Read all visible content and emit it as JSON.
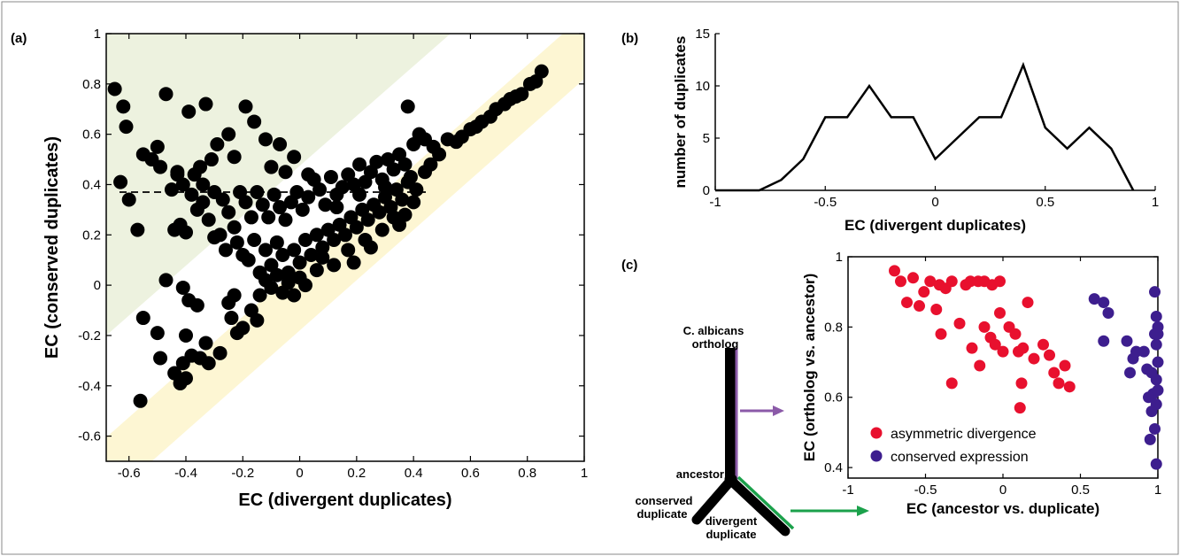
{
  "panels": {
    "a": "(a)",
    "b": "(b)",
    "c": "(c)"
  },
  "colors": {
    "points_a": "#000000",
    "asymmetric": "#e8102e",
    "conserved": "#3d1e8e",
    "upper_band": "#edf2df",
    "lower_band": "#fdf6d3",
    "ancestor_branch": "#8b5aa8",
    "divergent_branch": "#1ba14b"
  },
  "tree": {
    "ortholog_line1": "C. albicans",
    "ortholog_line2": "ortholog",
    "ancestor": "ancestor",
    "conserved_line1": "conserved",
    "conserved_line2": "duplicate",
    "divergent_line1": "divergent",
    "divergent_line2": "duplicate"
  },
  "chart_data": [
    {
      "id": "a",
      "type": "scatter",
      "xlabel": "EC (divergent duplicates)",
      "ylabel": "EC (conserved duplicates)",
      "xlim": [
        -0.68,
        1
      ],
      "ylim": [
        -0.7,
        1
      ],
      "xticks": [
        -0.6,
        -0.4,
        -0.2,
        0,
        0.2,
        0.4,
        0.6,
        0.8,
        1
      ],
      "yticks": [
        -0.6,
        -0.4,
        -0.2,
        0,
        0.2,
        0.4,
        0.6,
        0.8,
        1
      ],
      "xtick_labels": [
        "-0.6",
        "-0.4",
        "-0.2",
        "0",
        "0.2",
        "0.4",
        "0.6",
        "0.8",
        "1"
      ],
      "ytick_labels": [
        "-0.6",
        "-0.4",
        "-0.2",
        "0",
        "0.2",
        "0.4",
        "0.6",
        "0.8",
        "1"
      ],
      "reference_line_y": 0.37,
      "shaded_regions": [
        "upper-left triangle (conserved higher)",
        "diagonal band x ≈ y"
      ],
      "points": [
        [
          -0.65,
          0.78
        ],
        [
          -0.62,
          0.71
        ],
        [
          -0.61,
          0.63
        ],
        [
          -0.63,
          0.41
        ],
        [
          -0.6,
          0.34
        ],
        [
          -0.57,
          0.22
        ],
        [
          -0.55,
          0.52
        ],
        [
          -0.52,
          0.5
        ],
        [
          -0.5,
          0.55
        ],
        [
          -0.49,
          0.47
        ],
        [
          -0.47,
          0.76
        ],
        [
          -0.45,
          0.38
        ],
        [
          -0.43,
          0.45
        ],
        [
          -0.41,
          0.4
        ],
        [
          -0.39,
          0.69
        ],
        [
          -0.37,
          0.44
        ],
        [
          -0.35,
          0.47
        ],
        [
          -0.33,
          0.72
        ],
        [
          -0.31,
          0.5
        ],
        [
          -0.29,
          0.56
        ],
        [
          -0.25,
          0.6
        ],
        [
          -0.23,
          0.51
        ],
        [
          -0.19,
          0.71
        ],
        [
          -0.16,
          0.65
        ],
        [
          -0.12,
          0.58
        ],
        [
          -0.1,
          0.47
        ],
        [
          -0.07,
          0.56
        ],
        [
          -0.05,
          0.45
        ],
        [
          -0.02,
          0.51
        ],
        [
          0.03,
          0.44
        ],
        [
          -0.38,
          0.36
        ],
        [
          -0.36,
          0.3
        ],
        [
          -0.34,
          0.33
        ],
        [
          -0.32,
          0.26
        ],
        [
          -0.3,
          0.19
        ],
        [
          -0.27,
          0.34
        ],
        [
          -0.25,
          0.29
        ],
        [
          -0.23,
          0.23
        ],
        [
          -0.21,
          0.37
        ],
        [
          -0.19,
          0.33
        ],
        [
          -0.17,
          0.27
        ],
        [
          -0.15,
          0.37
        ],
        [
          -0.13,
          0.32
        ],
        [
          -0.11,
          0.27
        ],
        [
          -0.09,
          0.36
        ],
        [
          -0.07,
          0.31
        ],
        [
          -0.05,
          0.26
        ],
        [
          -0.03,
          0.33
        ],
        [
          -0.01,
          0.37
        ],
        [
          0.01,
          0.3
        ],
        [
          0.03,
          0.35
        ],
        [
          0.05,
          0.42
        ],
        [
          0.07,
          0.38
        ],
        [
          0.09,
          0.32
        ],
        [
          0.11,
          0.43
        ],
        [
          0.13,
          0.36
        ],
        [
          0.15,
          0.39
        ],
        [
          0.17,
          0.44
        ],
        [
          0.19,
          0.4
        ],
        [
          0.21,
          0.48
        ],
        [
          0.23,
          0.41
        ],
        [
          0.25,
          0.45
        ],
        [
          0.27,
          0.49
        ],
        [
          0.29,
          0.42
        ],
        [
          0.31,
          0.5
        ],
        [
          0.33,
          0.46
        ],
        [
          0.35,
          0.52
        ],
        [
          0.37,
          0.48
        ],
        [
          0.39,
          0.43
        ],
        [
          0.4,
          0.56
        ],
        [
          0.42,
          0.6
        ],
        [
          0.38,
          0.71
        ],
        [
          0.44,
          0.58
        ],
        [
          0.47,
          0.55
        ],
        [
          0.52,
          0.58
        ],
        [
          -0.44,
          0.22
        ],
        [
          -0.42,
          0.24
        ],
        [
          -0.4,
          0.21
        ],
        [
          -0.28,
          0.2
        ],
        [
          -0.26,
          0.14
        ],
        [
          -0.22,
          0.17
        ],
        [
          -0.2,
          0.12
        ],
        [
          -0.18,
          0.1
        ],
        [
          -0.16,
          0.18
        ],
        [
          -0.14,
          0.05
        ],
        [
          -0.12,
          0.14
        ],
        [
          -0.1,
          0.08
        ],
        [
          -0.08,
          0.17
        ],
        [
          -0.06,
          0.12
        ],
        [
          -0.04,
          0.05
        ],
        [
          -0.02,
          0.14
        ],
        [
          0.0,
          0.09
        ],
        [
          0.02,
          0.18
        ],
        [
          0.04,
          0.12
        ],
        [
          0.06,
          0.2
        ],
        [
          0.08,
          0.15
        ],
        [
          0.1,
          0.22
        ],
        [
          0.12,
          0.18
        ],
        [
          0.14,
          0.24
        ],
        [
          0.16,
          0.2
        ],
        [
          0.18,
          0.27
        ],
        [
          0.2,
          0.23
        ],
        [
          0.22,
          0.3
        ],
        [
          0.24,
          0.26
        ],
        [
          0.26,
          0.32
        ],
        [
          0.28,
          0.29
        ],
        [
          0.3,
          0.35
        ],
        [
          0.32,
          0.31
        ],
        [
          0.34,
          0.38
        ],
        [
          0.36,
          0.34
        ],
        [
          0.38,
          0.41
        ],
        [
          0.41,
          0.38
        ],
        [
          0.44,
          0.45
        ],
        [
          0.46,
          0.48
        ],
        [
          0.49,
          0.52
        ],
        [
          0.57,
          0.59
        ],
        [
          0.62,
          0.63
        ],
        [
          0.64,
          0.65
        ],
        [
          0.69,
          0.7
        ],
        [
          0.72,
          0.72
        ],
        [
          0.74,
          0.74
        ],
        [
          0.76,
          0.75
        ],
        [
          0.78,
          0.76
        ],
        [
          0.81,
          0.8
        ],
        [
          0.83,
          0.81
        ],
        [
          0.85,
          0.85
        ],
        [
          0.67,
          0.67
        ],
        [
          0.6,
          0.62
        ],
        [
          0.55,
          0.57
        ],
        [
          -0.14,
          -0.04
        ],
        [
          -0.12,
          0.02
        ],
        [
          -0.1,
          -0.01
        ],
        [
          -0.08,
          0.04
        ],
        [
          -0.06,
          -0.03
        ],
        [
          -0.04,
          0.01
        ],
        [
          -0.02,
          -0.04
        ],
        [
          0.0,
          0.03
        ],
        [
          0.02,
          0.0
        ],
        [
          -0.17,
          -0.1
        ],
        [
          -0.15,
          -0.14
        ],
        [
          -0.2,
          -0.17
        ],
        [
          -0.22,
          -0.19
        ],
        [
          -0.24,
          -0.13
        ],
        [
          -0.23,
          -0.04
        ],
        [
          -0.25,
          -0.07
        ],
        [
          -0.36,
          -0.08
        ],
        [
          -0.39,
          -0.06
        ],
        [
          -0.41,
          -0.01
        ],
        [
          -0.47,
          0.02
        ],
        [
          -0.55,
          -0.13
        ],
        [
          -0.5,
          -0.19
        ],
        [
          -0.49,
          -0.29
        ],
        [
          -0.44,
          -0.35
        ],
        [
          -0.41,
          -0.31
        ],
        [
          -0.38,
          -0.28
        ],
        [
          -0.35,
          -0.29
        ],
        [
          -0.33,
          -0.23
        ],
        [
          -0.4,
          -0.2
        ],
        [
          -0.4,
          -0.37
        ],
        [
          -0.42,
          -0.39
        ],
        [
          -0.32,
          -0.31
        ],
        [
          -0.28,
          -0.27
        ],
        [
          -0.56,
          -0.46
        ],
        [
          0.17,
          0.14
        ],
        [
          0.19,
          0.09
        ],
        [
          0.23,
          0.18
        ],
        [
          0.25,
          0.15
        ],
        [
          0.29,
          0.22
        ],
        [
          0.33,
          0.27
        ],
        [
          0.35,
          0.24
        ],
        [
          0.37,
          0.28
        ],
        [
          0.4,
          0.33
        ],
        [
          0.06,
          0.06
        ],
        [
          0.08,
          0.11
        ],
        [
          0.12,
          0.08
        ],
        [
          -0.3,
          0.37
        ],
        [
          -0.34,
          0.4
        ],
        [
          -0.43,
          0.44
        ],
        [
          0.3,
          0.39
        ],
        [
          0.21,
          0.36
        ],
        [
          0.13,
          0.31
        ]
      ]
    },
    {
      "id": "b",
      "type": "line",
      "xlabel": "EC (divergent duplicates)",
      "ylabel": "number of duplicates",
      "xlim": [
        -1,
        1
      ],
      "ylim": [
        0,
        15
      ],
      "xticks": [
        -1,
        -0.5,
        0,
        0.5,
        1
      ],
      "yticks": [
        0,
        5,
        10,
        15
      ],
      "xtick_labels": [
        "-1",
        "-0.5",
        "0",
        "0.5",
        "1"
      ],
      "ytick_labels": [
        "0",
        "5",
        "10",
        "15"
      ],
      "x": [
        -1,
        -0.9,
        -0.8,
        -0.7,
        -0.6,
        -0.5,
        -0.4,
        -0.3,
        -0.2,
        -0.1,
        0,
        0.1,
        0.2,
        0.3,
        0.4,
        0.5,
        0.6,
        0.7,
        0.8,
        0.9
      ],
      "y": [
        0,
        0,
        0,
        1,
        3,
        7,
        7,
        10,
        7,
        7,
        3,
        5,
        7,
        7,
        12,
        6,
        4,
        6,
        4,
        0
      ]
    },
    {
      "id": "c",
      "type": "scatter",
      "xlabel": "EC (ancestor vs. duplicate)",
      "ylabel": "EC (ortholog vs. ancestor)",
      "xlim": [
        -1,
        1
      ],
      "ylim": [
        0.37,
        1.0
      ],
      "xticks": [
        -1,
        -0.5,
        0,
        0.5,
        1
      ],
      "yticks": [
        0.4,
        0.6,
        0.8,
        1
      ],
      "xtick_labels": [
        "-1",
        "-0.5",
        "0",
        "0.5",
        "1"
      ],
      "ytick_labels": [
        "0.4",
        "0.6",
        "0.8",
        "1"
      ],
      "legend_position": "bottom-left",
      "series": [
        {
          "name": "asymmetric divergence",
          "points": [
            [
              -0.7,
              0.96
            ],
            [
              -0.66,
              0.93
            ],
            [
              -0.62,
              0.87
            ],
            [
              -0.58,
              0.94
            ],
            [
              -0.54,
              0.86
            ],
            [
              -0.51,
              0.9
            ],
            [
              -0.47,
              0.93
            ],
            [
              -0.43,
              0.85
            ],
            [
              -0.41,
              0.92
            ],
            [
              -0.37,
              0.91
            ],
            [
              -0.33,
              0.93
            ],
            [
              -0.28,
              0.81
            ],
            [
              -0.24,
              0.92
            ],
            [
              -0.21,
              0.93
            ],
            [
              -0.16,
              0.93
            ],
            [
              -0.12,
              0.93
            ],
            [
              -0.07,
              0.92
            ],
            [
              -0.02,
              0.93
            ],
            [
              -0.4,
              0.78
            ],
            [
              -0.2,
              0.74
            ],
            [
              -0.15,
              0.69
            ],
            [
              -0.12,
              0.8
            ],
            [
              -0.08,
              0.77
            ],
            [
              -0.05,
              0.75
            ],
            [
              -0.02,
              0.84
            ],
            [
              0.0,
              0.73
            ],
            [
              0.04,
              0.8
            ],
            [
              0.08,
              0.78
            ],
            [
              0.1,
              0.73
            ],
            [
              0.13,
              0.74
            ],
            [
              0.16,
              0.87
            ],
            [
              0.2,
              0.71
            ],
            [
              0.26,
              0.75
            ],
            [
              0.3,
              0.72
            ],
            [
              0.33,
              0.67
            ],
            [
              0.36,
              0.64
            ],
            [
              0.4,
              0.69
            ],
            [
              0.43,
              0.63
            ],
            [
              0.12,
              0.64
            ],
            [
              -0.33,
              0.64
            ],
            [
              0.11,
              0.57
            ]
          ]
        },
        {
          "name": "conserved expression",
          "points": [
            [
              0.59,
              0.88
            ],
            [
              0.65,
              0.87
            ],
            [
              0.68,
              0.84
            ],
            [
              0.65,
              0.76
            ],
            [
              0.8,
              0.76
            ],
            [
              0.84,
              0.71
            ],
            [
              0.86,
              0.73
            ],
            [
              0.82,
              0.67
            ],
            [
              0.91,
              0.73
            ],
            [
              0.93,
              0.68
            ],
            [
              0.96,
              0.67
            ],
            [
              0.97,
              0.61
            ],
            [
              0.94,
              0.6
            ],
            [
              0.99,
              0.58
            ],
            [
              0.96,
              0.56
            ],
            [
              0.99,
              0.75
            ],
            [
              0.98,
              0.78
            ],
            [
              1.0,
              0.8
            ],
            [
              0.99,
              0.83
            ],
            [
              0.98,
              0.9
            ],
            [
              1.0,
              0.7
            ],
            [
              0.99,
              0.65
            ],
            [
              1.0,
              0.62
            ],
            [
              0.98,
              0.51
            ],
            [
              0.99,
              0.41
            ],
            [
              0.95,
              0.48
            ],
            [
              1.0,
              0.78
            ]
          ]
        }
      ]
    }
  ]
}
